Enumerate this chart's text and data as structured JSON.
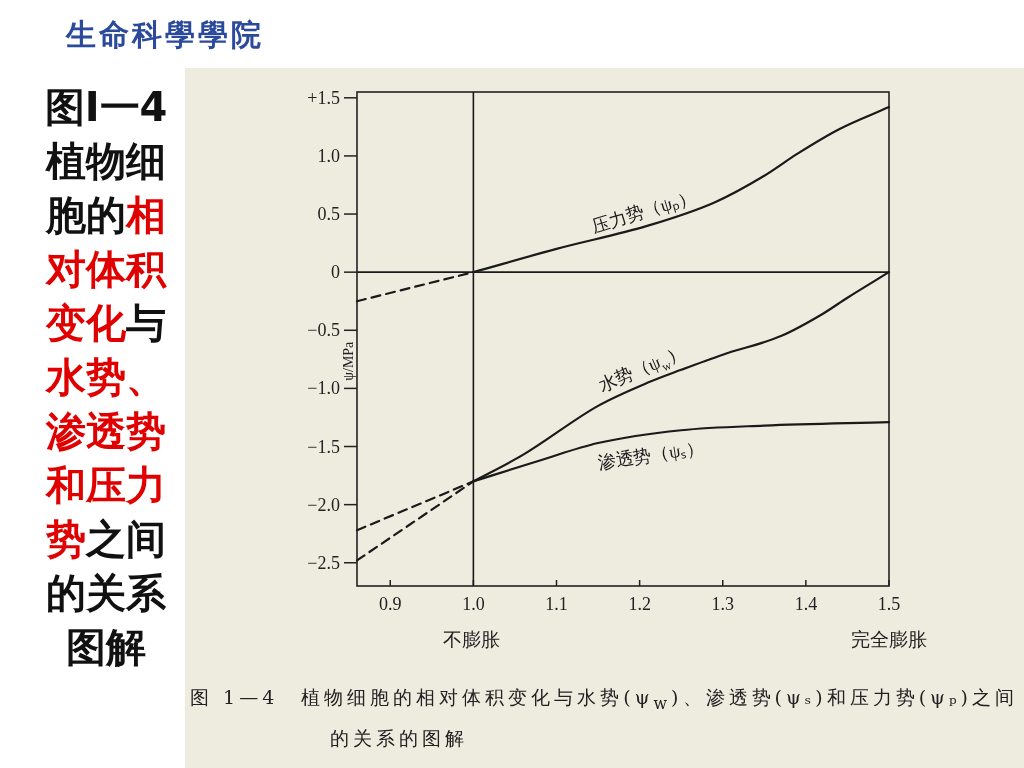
{
  "chart_data": {
    "type": "line",
    "title": "图I一4植物细胞的相对体积变化与水势、渗透势和压力势之间的关系图解",
    "ylabel": "ψ/MPa",
    "xlim": [
      0.86,
      1.5
    ],
    "xticks": [
      0.9,
      {
        "value": 1,
        "label": "1.0"
      },
      1.1,
      1.2,
      1.3,
      1.4,
      1.5
    ],
    "ylim": [
      -2.7,
      1.55
    ],
    "yticks": [
      {
        "value": 1.5,
        "label": "+1.5"
      },
      {
        "value": 1,
        "label": "1.0"
      },
      0.5,
      0,
      {
        "value": -0.5,
        "label": "−0.5"
      },
      {
        "value": -1,
        "label": "−1.0"
      },
      {
        "value": -1.5,
        "label": "−1.5"
      },
      {
        "value": -2,
        "label": "−2.0"
      },
      {
        "value": -2.5,
        "label": "−2.5"
      }
    ],
    "series": [
      {
        "name": "压力势（ψₚ）",
        "color": "#1a1a1a",
        "line_style": "solid",
        "x": [
          1.0,
          1.1,
          1.21,
          1.29,
          1.35,
          1.39,
          1.44,
          1.5
        ],
        "values": [
          0,
          0.2,
          0.4,
          0.6,
          0.83,
          1.02,
          1.23,
          1.42
        ]
      },
      {
        "color": "#1a1a1a",
        "line_style": "dashed",
        "x": [
          0.86,
          1.0
        ],
        "values": [
          -0.25,
          0
        ]
      },
      {
        "name": "水势（ψ$_{w}$）",
        "color": "#1a1a1a",
        "line_style": "solid",
        "x": [
          1.0,
          1.06,
          1.15,
          1.21,
          1.25,
          1.3,
          1.37,
          1.42,
          1.45,
          1.5
        ],
        "values": [
          -1.8,
          -1.57,
          -1.15,
          -0.95,
          -0.84,
          -0.71,
          -0.55,
          -0.36,
          -0.22,
          0
        ]
      },
      {
        "color": "#1a1a1a",
        "line_style": "dashed",
        "x": [
          0.86,
          1.0
        ],
        "values": [
          -2.48,
          -1.8
        ]
      },
      {
        "name": "渗透势（ψₛ）",
        "color": "#1a1a1a",
        "line_style": "solid",
        "x": [
          1.0,
          1.08,
          1.15,
          1.25,
          1.35,
          1.5
        ],
        "values": [
          -1.8,
          -1.62,
          -1.47,
          -1.36,
          -1.32,
          -1.29
        ]
      },
      {
        "color": "#1a1a1a",
        "line_style": "dashed",
        "x": [
          0.86,
          1.0
        ],
        "values": [
          -2.22,
          -1.8
        ]
      }
    ],
    "ref_lines": [
      {
        "axis": "x",
        "value": 1,
        "color": "#1a1a1a"
      },
      {
        "axis": "y",
        "value": 0,
        "color": "#1a1a1a"
      }
    ],
    "annotations": [
      "生命科學學院",
      "不膨胀",
      "完全膨胀",
      "图 1—4　植物细胞的相对体积变化与水势(ψ$_{w}$)、渗透势(ψₛ)和压力势(ψₚ)之间的关系的图解"
    ]
  }
}
